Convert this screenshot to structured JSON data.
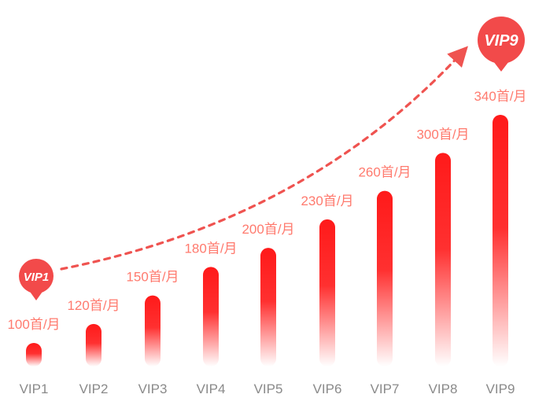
{
  "chart_data": {
    "type": "bar",
    "categories": [
      "VIP1",
      "VIP2",
      "VIP3",
      "VIP4",
      "VIP5",
      "VIP6",
      "VIP7",
      "VIP8",
      "VIP9"
    ],
    "values": [
      100,
      120,
      150,
      180,
      200,
      230,
      260,
      300,
      340
    ],
    "data_labels": [
      "100首/月",
      "120首/月",
      "150首/月",
      "180首/月",
      "200首/月",
      "230首/月",
      "260首/月",
      "300首/月",
      "340首/月"
    ],
    "unit": "首/月",
    "annotations": {
      "start_pin": "VIP1",
      "end_pin": "VIP9",
      "trend_arrow": "dotted-up-arrow"
    },
    "colors": {
      "bar_top": "#ff1a1a",
      "bar_bottom": "#ffffff",
      "label": "#ff7a6e",
      "tick": "#8a8a8a",
      "pin": "#f24a4a",
      "trend": "#ef5350"
    },
    "grid": false,
    "legend": "none"
  }
}
